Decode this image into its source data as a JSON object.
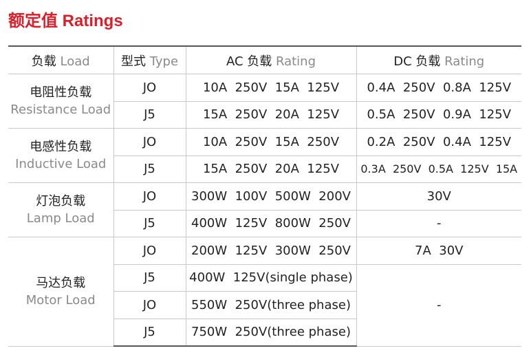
{
  "header": {
    "title": "额定值 Ratings"
  },
  "table": {
    "columns": [
      {
        "zh": "负载",
        "en": "Load"
      },
      {
        "zh": "型式",
        "en": "Type"
      },
      {
        "zh": "AC 负载",
        "en": "Rating"
      },
      {
        "zh": "DC 负载",
        "en": "Rating"
      }
    ],
    "groups": [
      {
        "zh": "电阻性负载",
        "en": "Resistance Load"
      },
      {
        "zh": "电感性负载",
        "en": "Inductive Load"
      },
      {
        "zh": "灯泡负载",
        "en": "Lamp Load"
      },
      {
        "zh": "马达负载",
        "en": "Motor Load"
      }
    ],
    "rows": [
      {
        "type": "JO",
        "ac": "10A  250V  15A  125V",
        "dc": "0.4A  250V  0.8A  125V"
      },
      {
        "type": "J5",
        "ac": "15A  250V  20A  125V",
        "dc": "0.5A  250V  0.9A  125V"
      },
      {
        "type": "JO",
        "ac": "10A  250V  15A  250V",
        "dc": "0.2A  250V  0.4A  125V"
      },
      {
        "type": "J5",
        "ac": "15A  250V  20A  125V",
        "dc": "0.3A  250V  0.5A  125V  15A"
      },
      {
        "type": "JO",
        "ac": "300W  100V  500W  200V",
        "dc": "30V"
      },
      {
        "type": "J5",
        "ac": "400W  125V  800W  250V",
        "dc": "-"
      },
      {
        "type": "JO",
        "ac": "200W  125V  300W  250V",
        "dc": "7A  30V"
      },
      {
        "type": "J5",
        "ac": "400W  125V(single phase)",
        "dc": "-"
      },
      {
        "type": "JO",
        "ac": "550W  250V(three phase)"
      },
      {
        "type": "J5",
        "ac": "750W  250V(three phase)"
      }
    ]
  }
}
